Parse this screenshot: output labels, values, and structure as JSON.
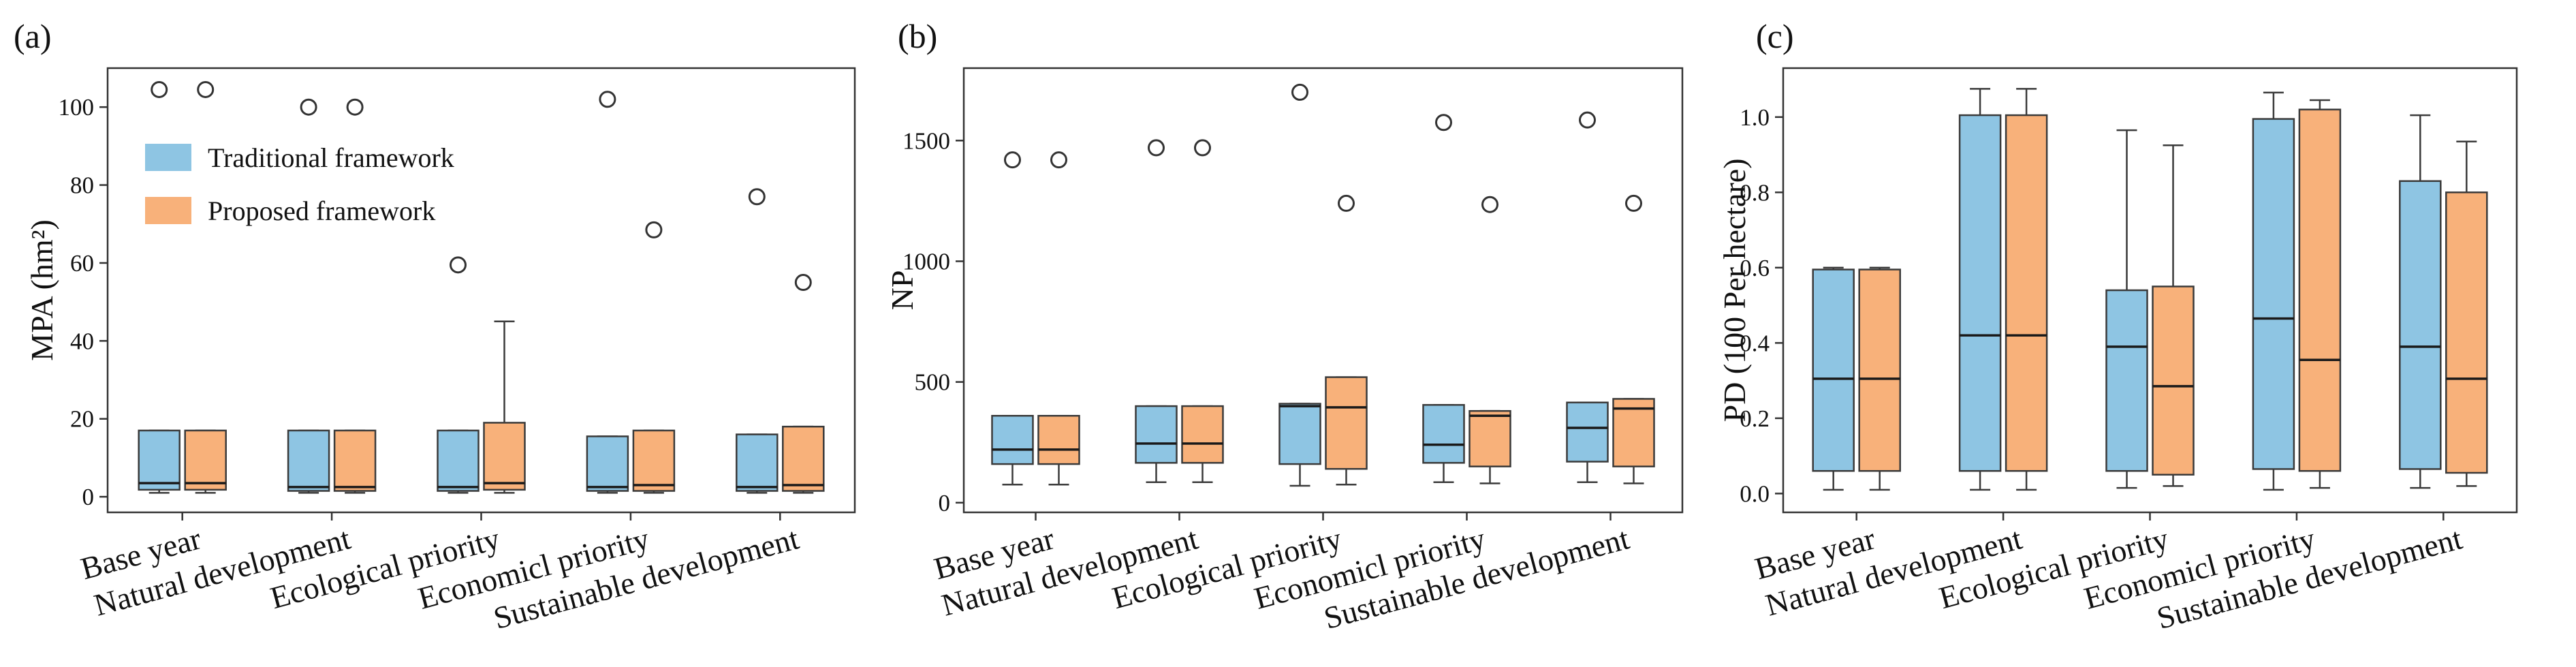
{
  "colors": {
    "traditional": "#8ec5e3",
    "proposed": "#f8b17a",
    "box_edge": "#3a3a3a",
    "median": "#1a1a1a",
    "whisker": "#3a3a3a"
  },
  "chart_data": [
    {
      "panel_label": "(a)",
      "type": "box",
      "ylabel": "MPA (hm²)",
      "ylim": [
        -4,
        110
      ],
      "yticks": [
        0,
        20,
        40,
        60,
        80,
        100
      ],
      "categories": [
        "Base year",
        "Natural development",
        "Ecological priority",
        "Economicl priority",
        "Sustainable development"
      ],
      "legend": {
        "placement": "upper-left",
        "entries": [
          "Traditional framework",
          "Proposed framework"
        ]
      },
      "series": [
        {
          "name": "Traditional framework",
          "boxes": [
            {
              "whislo": 1,
              "q1": 1.8,
              "med": 3.5,
              "q3": 17,
              "whishi": 17,
              "fliers": [
                104.5
              ]
            },
            {
              "whislo": 1,
              "q1": 1.5,
              "med": 2.5,
              "q3": 17,
              "whishi": 17,
              "fliers": [
                100
              ]
            },
            {
              "whislo": 1,
              "q1": 1.5,
              "med": 2.5,
              "q3": 17,
              "whishi": 17,
              "fliers": [
                59.5
              ]
            },
            {
              "whislo": 1,
              "q1": 1.5,
              "med": 2.5,
              "q3": 15.5,
              "whishi": 15.5,
              "fliers": [
                102
              ]
            },
            {
              "whislo": 1,
              "q1": 1.5,
              "med": 2.5,
              "q3": 16,
              "whishi": 16,
              "fliers": [
                77
              ]
            }
          ]
        },
        {
          "name": "Proposed framework",
          "boxes": [
            {
              "whislo": 1,
              "q1": 1.8,
              "med": 3.5,
              "q3": 17,
              "whishi": 17,
              "fliers": [
                104.5
              ]
            },
            {
              "whislo": 1,
              "q1": 1.5,
              "med": 2.5,
              "q3": 17,
              "whishi": 17,
              "fliers": [
                100
              ]
            },
            {
              "whislo": 1,
              "q1": 1.8,
              "med": 3.5,
              "q3": 19,
              "whishi": 45,
              "fliers": []
            },
            {
              "whislo": 1,
              "q1": 1.5,
              "med": 3,
              "q3": 17,
              "whishi": 17,
              "fliers": [
                68.5
              ]
            },
            {
              "whislo": 1,
              "q1": 1.5,
              "med": 3,
              "q3": 18,
              "whishi": 18,
              "fliers": [
                55
              ]
            }
          ]
        }
      ]
    },
    {
      "panel_label": "(b)",
      "type": "box",
      "ylabel": "NP",
      "ylim": [
        -40,
        1800
      ],
      "yticks": [
        0,
        500,
        1000,
        1500
      ],
      "categories": [
        "Base year",
        "Natural development",
        "Ecological priority",
        "Economicl priority",
        "Sustainable development"
      ],
      "series": [
        {
          "name": "Traditional framework",
          "boxes": [
            {
              "whislo": 75,
              "q1": 160,
              "med": 220,
              "q3": 360,
              "whishi": 360,
              "fliers": [
                1420
              ]
            },
            {
              "whislo": 85,
              "q1": 165,
              "med": 245,
              "q3": 400,
              "whishi": 400,
              "fliers": [
                1470
              ]
            },
            {
              "whislo": 70,
              "q1": 160,
              "med": 400,
              "q3": 410,
              "whishi": 410,
              "fliers": [
                1700
              ]
            },
            {
              "whislo": 85,
              "q1": 165,
              "med": 240,
              "q3": 405,
              "whishi": 405,
              "fliers": [
                1575
              ]
            },
            {
              "whislo": 85,
              "q1": 170,
              "med": 310,
              "q3": 415,
              "whishi": 415,
              "fliers": [
                1585
              ]
            }
          ]
        },
        {
          "name": "Proposed framework",
          "boxes": [
            {
              "whislo": 75,
              "q1": 160,
              "med": 220,
              "q3": 360,
              "whishi": 360,
              "fliers": [
                1420
              ]
            },
            {
              "whislo": 85,
              "q1": 165,
              "med": 245,
              "q3": 400,
              "whishi": 400,
              "fliers": [
                1470
              ]
            },
            {
              "whislo": 75,
              "q1": 140,
              "med": 395,
              "q3": 520,
              "whishi": 520,
              "fliers": [
                1240
              ]
            },
            {
              "whislo": 80,
              "q1": 150,
              "med": 360,
              "q3": 380,
              "whishi": 380,
              "fliers": [
                1235
              ]
            },
            {
              "whislo": 80,
              "q1": 150,
              "med": 390,
              "q3": 430,
              "whishi": 430,
              "fliers": [
                1240
              ]
            }
          ]
        }
      ]
    },
    {
      "panel_label": "(c)",
      "type": "box",
      "ylabel": "PD (100 Per hectare)",
      "ylim": [
        -0.05,
        1.13
      ],
      "yticks": [
        0.0,
        0.2,
        0.4,
        0.6,
        0.8,
        1.0
      ],
      "ytick_labels": [
        "0.0",
        "0.2",
        "0.4",
        "0.6",
        "0.8",
        "1.0"
      ],
      "categories": [
        "Base year",
        "Natural development",
        "Ecological priority",
        "Economicl priority",
        "Sustainable development"
      ],
      "series": [
        {
          "name": "Traditional framework",
          "boxes": [
            {
              "whislo": 0.01,
              "q1": 0.06,
              "med": 0.305,
              "q3": 0.595,
              "whishi": 0.6,
              "fliers": []
            },
            {
              "whislo": 0.01,
              "q1": 0.06,
              "med": 0.42,
              "q3": 1.005,
              "whishi": 1.075,
              "fliers": []
            },
            {
              "whislo": 0.015,
              "q1": 0.06,
              "med": 0.39,
              "q3": 0.54,
              "whishi": 0.965,
              "fliers": []
            },
            {
              "whislo": 0.01,
              "q1": 0.065,
              "med": 0.465,
              "q3": 0.995,
              "whishi": 1.065,
              "fliers": []
            },
            {
              "whislo": 0.015,
              "q1": 0.065,
              "med": 0.39,
              "q3": 0.83,
              "whishi": 1.005,
              "fliers": []
            }
          ]
        },
        {
          "name": "Proposed framework",
          "boxes": [
            {
              "whislo": 0.01,
              "q1": 0.06,
              "med": 0.305,
              "q3": 0.595,
              "whishi": 0.6,
              "fliers": []
            },
            {
              "whislo": 0.01,
              "q1": 0.06,
              "med": 0.42,
              "q3": 1.005,
              "whishi": 1.075,
              "fliers": []
            },
            {
              "whislo": 0.02,
              "q1": 0.05,
              "med": 0.285,
              "q3": 0.55,
              "whishi": 0.925,
              "fliers": []
            },
            {
              "whislo": 0.015,
              "q1": 0.06,
              "med": 0.355,
              "q3": 1.02,
              "whishi": 1.045,
              "fliers": []
            },
            {
              "whislo": 0.02,
              "q1": 0.055,
              "med": 0.305,
              "q3": 0.8,
              "whishi": 0.935,
              "fliers": []
            }
          ]
        }
      ]
    }
  ]
}
